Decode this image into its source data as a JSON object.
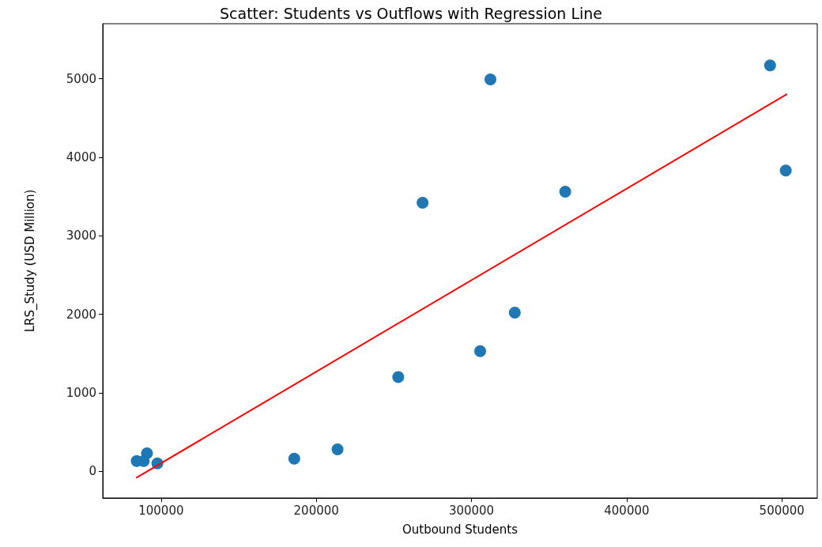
{
  "chart_data": {
    "type": "scatter",
    "title": "Scatter: Students vs Outflows with Regression Line",
    "xlabel": "Outbound Students",
    "ylabel": "LRS_Study (USD Million)",
    "xlim": [
      62400,
      522800
    ],
    "xticks": [
      100000,
      200000,
      300000,
      400000,
      500000
    ],
    "ylim": [
      -340,
      5700
    ],
    "yticks": [
      0,
      1000,
      2000,
      3000,
      4000,
      5000
    ],
    "grid": false,
    "marker": "circle",
    "series": [
      {
        "color": "#1f77b4",
        "x": [
          84300,
          88800,
          90900,
          97600,
          185800,
          213700,
          252800,
          268500,
          305600,
          312200,
          327900,
          360400,
          492400,
          502500
        ],
        "values": [
          130,
          130,
          230,
          100,
          160,
          280,
          1200,
          3420,
          1530,
          4990,
          2020,
          3560,
          5170,
          3830
        ]
      },
      {
        "type": "line",
        "color": "#ff0000",
        "marker": "none",
        "line_style": "solid",
        "x": [
          84300,
          503000
        ],
        "values": [
          -80,
          4800
        ]
      }
    ]
  }
}
